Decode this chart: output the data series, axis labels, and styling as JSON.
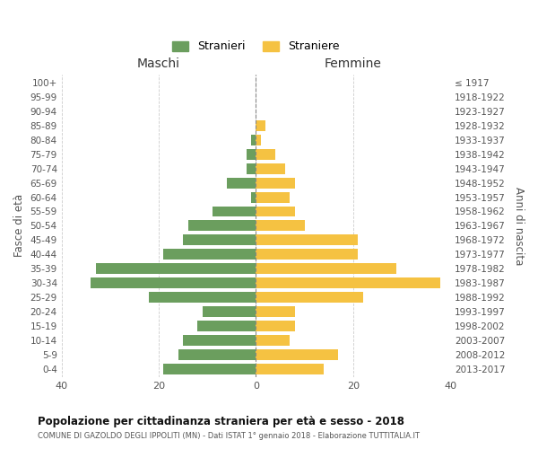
{
  "age_groups": [
    "100+",
    "95-99",
    "90-94",
    "85-89",
    "80-84",
    "75-79",
    "70-74",
    "65-69",
    "60-64",
    "55-59",
    "50-54",
    "45-49",
    "40-44",
    "35-39",
    "30-34",
    "25-29",
    "20-24",
    "15-19",
    "10-14",
    "5-9",
    "0-4"
  ],
  "birth_years": [
    "≤ 1917",
    "1918-1922",
    "1923-1927",
    "1928-1932",
    "1933-1937",
    "1938-1942",
    "1943-1947",
    "1948-1952",
    "1953-1957",
    "1958-1962",
    "1963-1967",
    "1968-1972",
    "1973-1977",
    "1978-1982",
    "1983-1987",
    "1988-1992",
    "1993-1997",
    "1998-2002",
    "2003-2007",
    "2008-2012",
    "2013-2017"
  ],
  "maschi": [
    0,
    0,
    0,
    0,
    1,
    2,
    2,
    6,
    1,
    9,
    14,
    15,
    19,
    33,
    34,
    22,
    11,
    12,
    15,
    16,
    19
  ],
  "femmine": [
    0,
    0,
    0,
    2,
    1,
    4,
    6,
    8,
    7,
    8,
    10,
    21,
    21,
    29,
    38,
    22,
    8,
    8,
    7,
    17,
    14
  ],
  "color_maschi": "#6b9e5e",
  "color_femmine": "#f5c242",
  "title": "Popolazione per cittadinanza straniera per età e sesso - 2018",
  "subtitle": "COMUNE DI GAZOLDO DEGLI IPPOLITI (MN) - Dati ISTAT 1° gennaio 2018 - Elaborazione TUTTITALIA.IT",
  "xlabel_left": "Maschi",
  "xlabel_right": "Femmine",
  "ylabel_left": "Fasce di età",
  "ylabel_right": "Anni di nascita",
  "legend_maschi": "Stranieri",
  "legend_femmine": "Straniere",
  "xlim": 40,
  "background_color": "#ffffff",
  "grid_color": "#cccccc"
}
